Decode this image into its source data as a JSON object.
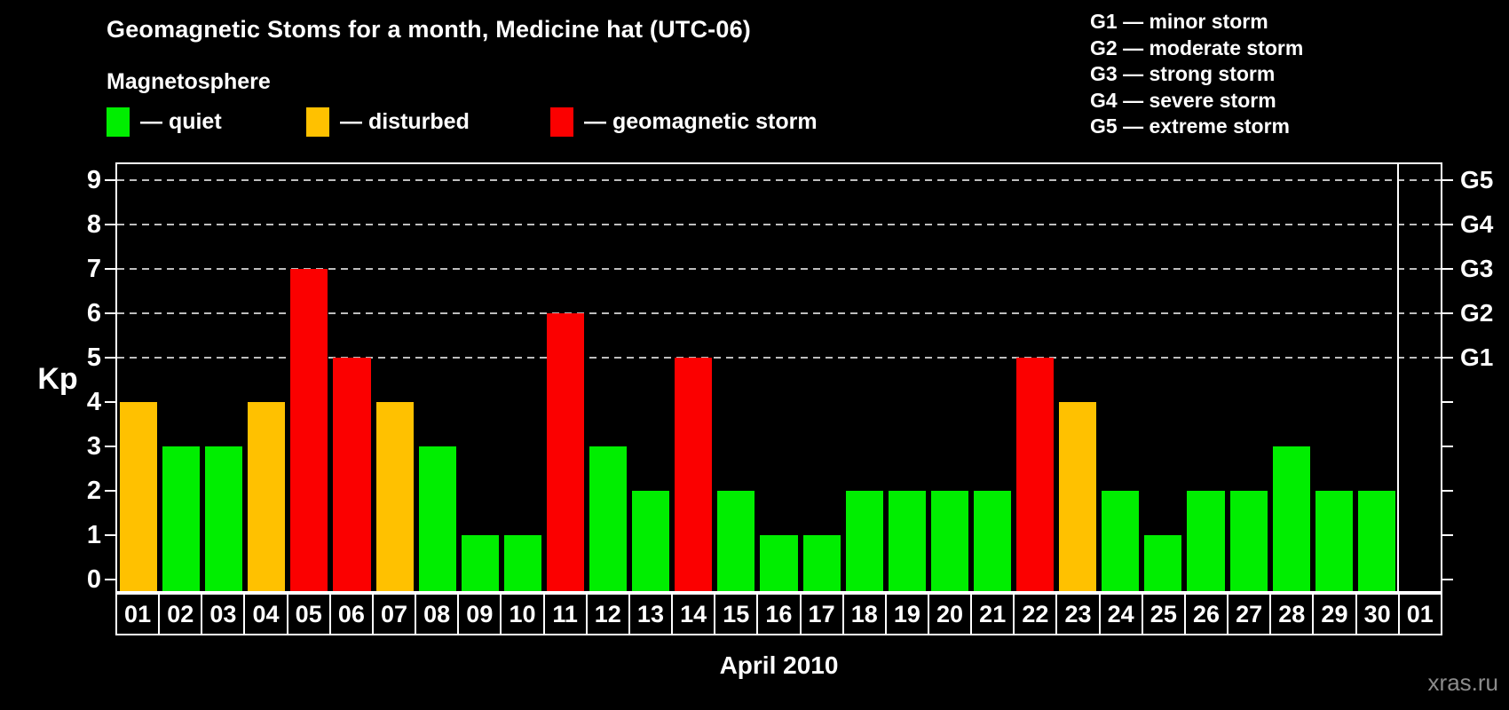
{
  "title": "Geomagnetic Stoms for a month, Medicine hat (UTC-06)",
  "magnetosphere_label": "Magnetosphere",
  "legend": {
    "items": [
      {
        "key": "quiet",
        "label": "— quiet",
        "color": "#00EE00"
      },
      {
        "key": "disturbed",
        "label": "— disturbed",
        "color": "#FFC100"
      },
      {
        "key": "storm",
        "label": "— geomagnetic storm",
        "color": "#FB0000"
      }
    ]
  },
  "g_legend": [
    "G1 — minor storm",
    "G2 — moderate storm",
    "G3 — strong storm",
    "G4 — severe storm",
    "G5 — extreme storm"
  ],
  "watermark": "xras.ru",
  "chart_data": {
    "type": "bar",
    "title": "Geomagnetic Stoms for a month, Medicine hat (UTC-06)",
    "xlabel": "April 2010",
    "ylabel": "Kp",
    "ylim": [
      0,
      9
    ],
    "y_ticks": [
      "0",
      "1",
      "2",
      "3",
      "4",
      "5",
      "6",
      "7",
      "8",
      "9"
    ],
    "grid": {
      "levels": [
        5,
        6,
        7,
        8,
        9
      ],
      "style": "dashed",
      "color": "#BEBEBE"
    },
    "right_axis_labels": [
      {
        "kp": 5,
        "label": "G1"
      },
      {
        "kp": 6,
        "label": "G2"
      },
      {
        "kp": 7,
        "label": "G3"
      },
      {
        "kp": 8,
        "label": "G4"
      },
      {
        "kp": 9,
        "label": "G5"
      }
    ],
    "legend_position": "top",
    "categories": [
      "01",
      "02",
      "03",
      "04",
      "05",
      "06",
      "07",
      "08",
      "09",
      "10",
      "11",
      "12",
      "13",
      "14",
      "15",
      "16",
      "17",
      "18",
      "19",
      "20",
      "21",
      "22",
      "23",
      "24",
      "25",
      "26",
      "27",
      "28",
      "29",
      "30",
      "01"
    ],
    "values": [
      4,
      3,
      3,
      4,
      7,
      5,
      4,
      3,
      1,
      1,
      6,
      3,
      2,
      5,
      2,
      1,
      1,
      2,
      2,
      2,
      2,
      5,
      4,
      2,
      1,
      2,
      2,
      3,
      2,
      2,
      null
    ],
    "statuses": [
      "disturbed",
      "quiet",
      "quiet",
      "disturbed",
      "storm",
      "storm",
      "disturbed",
      "quiet",
      "quiet",
      "quiet",
      "storm",
      "quiet",
      "quiet",
      "storm",
      "quiet",
      "quiet",
      "quiet",
      "quiet",
      "quiet",
      "quiet",
      "quiet",
      "storm",
      "disturbed",
      "quiet",
      "quiet",
      "quiet",
      "quiet",
      "quiet",
      "quiet",
      "quiet",
      null
    ]
  }
}
